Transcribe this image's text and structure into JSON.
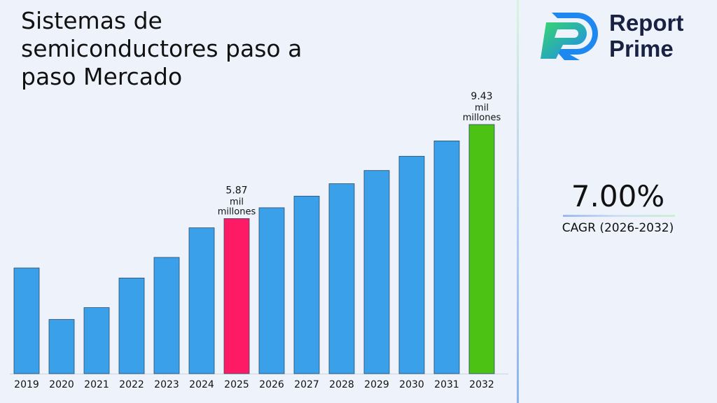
{
  "title": "Sistemas de semiconductores paso a paso Mercado",
  "brand": {
    "line1": "Report",
    "line2": "Prime"
  },
  "cagr": {
    "value": "7.00%",
    "label": "CAGR (2026-2032)"
  },
  "colors": {
    "bar": "#3aa0ea",
    "highlight_2025": "#ff1a66",
    "highlight_2032": "#4cc214",
    "logo_blue": "#1e88f0",
    "logo_green": "#38d66e",
    "logo_text": "#1a2244"
  },
  "chart_data": {
    "type": "bar",
    "title": "Sistemas de semiconductores paso a paso Mercado",
    "xlabel": "",
    "ylabel": "",
    "categories": [
      "2019",
      "2020",
      "2021",
      "2022",
      "2023",
      "2024",
      "2025",
      "2026",
      "2027",
      "2028",
      "2029",
      "2030",
      "2031",
      "2032"
    ],
    "values": [
      4.0,
      2.05,
      2.5,
      3.62,
      4.4,
      5.52,
      5.87,
      6.28,
      6.72,
      7.19,
      7.69,
      8.23,
      8.81,
      9.43
    ],
    "ylim": [
      0,
      9.43
    ],
    "bar_colors": [
      "bar",
      "bar",
      "bar",
      "bar",
      "bar",
      "bar",
      "highlight_2025",
      "bar",
      "bar",
      "bar",
      "bar",
      "bar",
      "bar",
      "highlight_2032"
    ],
    "annotations": [
      {
        "category": "2025",
        "lines": [
          "5.87",
          "mil",
          "millones"
        ]
      },
      {
        "category": "2032",
        "lines": [
          "9.43",
          "mil",
          "millones"
        ]
      }
    ],
    "grid": false,
    "legend": "none"
  }
}
